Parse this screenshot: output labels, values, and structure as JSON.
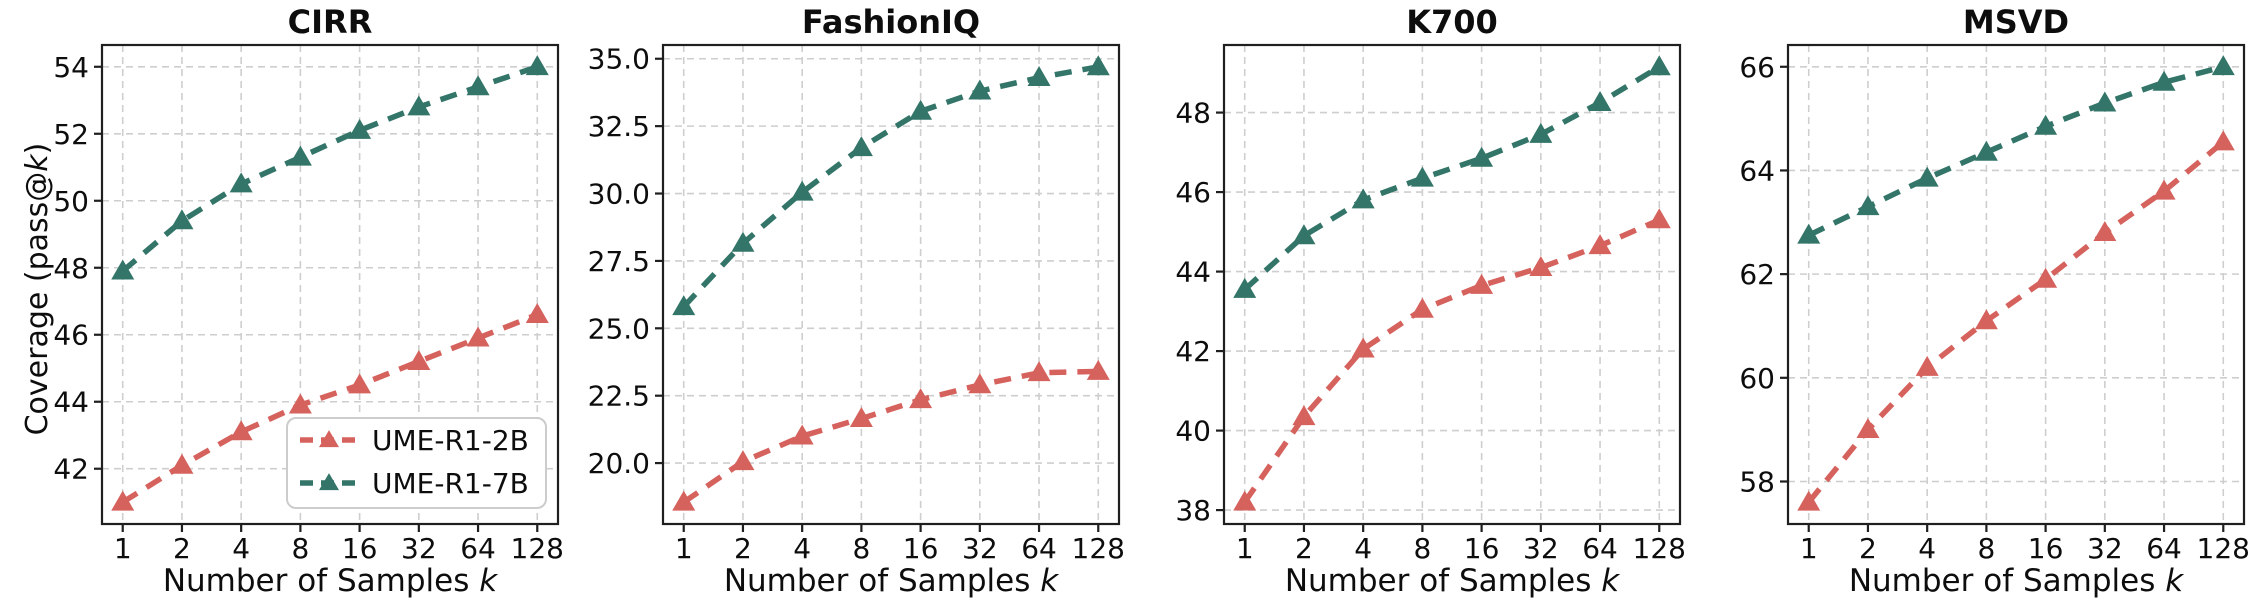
{
  "figure": {
    "background": "#ffffff",
    "ylabel": {
      "prefix": "Coverage (pass@",
      "italic": "k",
      "suffix": ")"
    },
    "xlabel": {
      "prefix": "Number of Samples ",
      "italic": "k"
    },
    "legend": {
      "position": "lower-right-of-first-panel",
      "entries": [
        {
          "label": "UME-R1-2B",
          "color": "#D6625E"
        },
        {
          "label": "UME-R1-7B",
          "color": "#337568"
        }
      ]
    },
    "colors": {
      "ume_r1_2b": "#D6625E",
      "ume_r1_7b": "#337568",
      "grid": "#cecece",
      "spine": "#1f1f1f"
    }
  },
  "chart_data": [
    {
      "type": "line",
      "title": "CIRR",
      "x_scale": "log2",
      "x": [
        1,
        2,
        4,
        8,
        16,
        32,
        64,
        128
      ],
      "x_tick_labels": [
        "1",
        "2",
        "4",
        "8",
        "16",
        "32",
        "64",
        "128"
      ],
      "series": [
        {
          "name": "UME-R1-2B",
          "color": "#D6625E",
          "values": [
            41.0,
            42.1,
            43.1,
            43.9,
            44.5,
            45.2,
            45.9,
            46.6
          ]
        },
        {
          "name": "UME-R1-7B",
          "color": "#337568",
          "values": [
            47.9,
            49.4,
            50.5,
            51.3,
            52.1,
            52.8,
            53.4,
            54.0
          ]
        }
      ],
      "ylim": [
        40.35,
        54.65
      ],
      "yticks": [
        42,
        44,
        46,
        48,
        50,
        52,
        54
      ],
      "ytick_labels": [
        "42",
        "44",
        "46",
        "48",
        "50",
        "52",
        "54"
      ],
      "grid": true,
      "legend_visible": true,
      "marker": "triangle-up",
      "linestyle": "dashed"
    },
    {
      "type": "line",
      "title": "FashionIQ",
      "x_scale": "log2",
      "x": [
        1,
        2,
        4,
        8,
        16,
        32,
        64,
        128
      ],
      "x_tick_labels": [
        "1",
        "2",
        "4",
        "8",
        "16",
        "32",
        "64",
        "128"
      ],
      "series": [
        {
          "name": "UME-R1-2B",
          "color": "#D6625E",
          "values": [
            18.55,
            20.05,
            21.0,
            21.65,
            22.35,
            22.9,
            23.35,
            23.4
          ]
        },
        {
          "name": "UME-R1-7B",
          "color": "#337568",
          "values": [
            25.8,
            28.15,
            30.05,
            31.7,
            33.05,
            33.8,
            34.3,
            34.7
          ]
        }
      ],
      "ylim": [
        17.74,
        35.51
      ],
      "yticks": [
        20,
        22.5,
        25,
        27.5,
        30,
        32.5,
        35
      ],
      "ytick_labels": [
        "20.0",
        "22.5",
        "25.0",
        "27.5",
        "30.0",
        "32.5",
        "35.0"
      ],
      "grid": true,
      "legend_visible": false,
      "marker": "triangle-up",
      "linestyle": "dashed"
    },
    {
      "type": "line",
      "title": "K700",
      "x_scale": "log2",
      "x": [
        1,
        2,
        4,
        8,
        16,
        32,
        64,
        128
      ],
      "x_tick_labels": [
        "1",
        "2",
        "4",
        "8",
        "16",
        "32",
        "64",
        "128"
      ],
      "series": [
        {
          "name": "UME-R1-2B",
          "color": "#D6625E",
          "values": [
            38.2,
            40.35,
            42.05,
            43.05,
            43.65,
            44.1,
            44.65,
            45.3
          ]
        },
        {
          "name": "UME-R1-7B",
          "color": "#337568",
          "values": [
            43.55,
            44.9,
            45.8,
            46.35,
            46.85,
            47.45,
            48.25,
            49.15
          ]
        }
      ],
      "ylim": [
        37.65,
        49.7
      ],
      "yticks": [
        38,
        40,
        42,
        44,
        46,
        48
      ],
      "ytick_labels": [
        "38",
        "40",
        "42",
        "44",
        "46",
        "48"
      ],
      "grid": true,
      "legend_visible": false,
      "marker": "triangle-up",
      "linestyle": "dashed"
    },
    {
      "type": "line",
      "title": "MSVD",
      "x_scale": "log2",
      "x": [
        1,
        2,
        4,
        8,
        16,
        32,
        64,
        128
      ],
      "x_tick_labels": [
        "1",
        "2",
        "4",
        "8",
        "16",
        "32",
        "64",
        "128"
      ],
      "series": [
        {
          "name": "UME-R1-2B",
          "color": "#D6625E",
          "values": [
            57.6,
            59.0,
            60.2,
            61.1,
            61.9,
            62.8,
            63.6,
            64.55
          ]
        },
        {
          "name": "UME-R1-7B",
          "color": "#337568",
          "values": [
            62.75,
            63.3,
            63.85,
            64.35,
            64.85,
            65.3,
            65.7,
            66.0
          ]
        }
      ],
      "ylim": [
        57.18,
        66.42
      ],
      "yticks": [
        58,
        60,
        62,
        64,
        66
      ],
      "ytick_labels": [
        "58",
        "60",
        "62",
        "64",
        "66"
      ],
      "grid": true,
      "legend_visible": false,
      "marker": "triangle-up",
      "linestyle": "dashed"
    }
  ]
}
